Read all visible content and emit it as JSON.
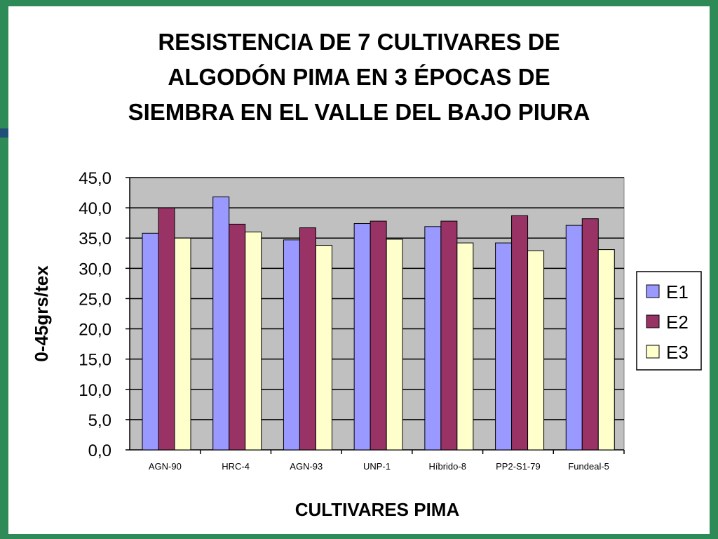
{
  "title_lines": [
    "RESISTENCIA DE 7 CULTIVARES DE",
    "ALGODÓN PIMA EN 3 ÉPOCAS DE",
    "SIEMBRA EN EL VALLE DEL BAJO PIURA"
  ],
  "colors": {
    "frame": "#2e8b57",
    "plot_bg": "#c0c0c0",
    "E1": "#9999ff",
    "E2": "#993366",
    "E3": "#ffffcc"
  },
  "chart_data": {
    "type": "bar",
    "title": "RESISTENCIA DE 7 CULTIVARES DE ALGODÓN PIMA EN 3 ÉPOCAS DE SIEMBRA EN EL VALLE DEL BAJO PIURA",
    "xlabel": "CULTIVARES  PIMA",
    "ylabel": "0-45grs/tex",
    "ylim": [
      0,
      45
    ],
    "yticks": [
      "0,0",
      "5,0",
      "10,0",
      "15,0",
      "20,0",
      "25,0",
      "30,0",
      "35,0",
      "40,0",
      "45,0"
    ],
    "grid": true,
    "legend_position": "right",
    "categories": [
      "AGN-90",
      "HRC-4",
      "AGN-93",
      "UNP-1",
      "Híbrido-8",
      "PP2-S1-79",
      "Fundeal-5"
    ],
    "series": [
      {
        "name": "E1",
        "values": [
          35.8,
          41.8,
          34.7,
          37.4,
          36.9,
          34.2,
          37.1
        ]
      },
      {
        "name": "E2",
        "values": [
          40.0,
          37.3,
          36.7,
          37.8,
          37.8,
          38.7,
          38.2
        ]
      },
      {
        "name": "E3",
        "values": [
          35.0,
          36.0,
          33.8,
          34.8,
          34.2,
          32.9,
          33.1
        ]
      }
    ]
  }
}
